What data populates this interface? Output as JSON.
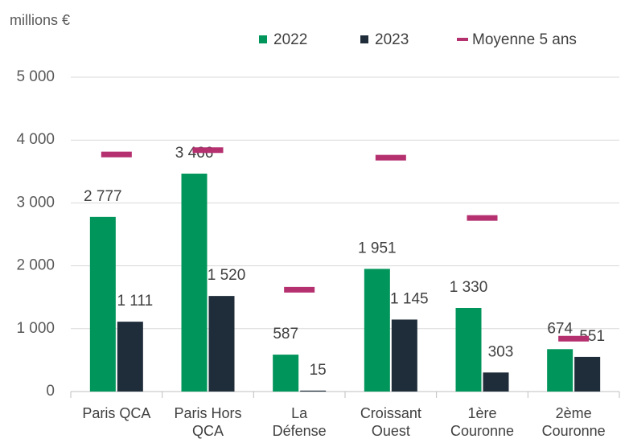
{
  "chart_data": {
    "type": "bar",
    "y_label": "millions €",
    "categories": [
      "Paris QCA",
      "Paris Hors QCA",
      "La Défense",
      "Croissant Ouest",
      "1ère Couronne",
      "2ème Couronne"
    ],
    "series": [
      {
        "name": "2022",
        "color": "#00955a",
        "values": [
          2777,
          3466,
          587,
          1951,
          1330,
          674
        ],
        "value_labels": [
          "2 777",
          "3 466",
          "587",
          "1 951",
          "1 330",
          "674"
        ]
      },
      {
        "name": "2023",
        "color": "#1f2d3a",
        "values": [
          1111,
          1520,
          15,
          1145,
          303,
          551
        ],
        "value_labels": [
          "1 111",
          "1 520",
          "15",
          "1 145",
          "303",
          "551"
        ]
      },
      {
        "name": "Moyenne 5 ans",
        "color": "#b5306f",
        "type": "marker",
        "values": [
          3770,
          3840,
          1620,
          3720,
          2760,
          840
        ]
      }
    ],
    "ylim": [
      0,
      5000
    ],
    "yticks": [
      0,
      {
        "value": 1000,
        "label": "1 000"
      },
      {
        "value": 2000,
        "label": "2 000"
      },
      {
        "value": 3000,
        "label": "3 000"
      },
      {
        "value": 4000,
        "label": "4 000"
      },
      {
        "value": 5000,
        "label": "5 000"
      }
    ],
    "grid": true,
    "legend": "top"
  }
}
